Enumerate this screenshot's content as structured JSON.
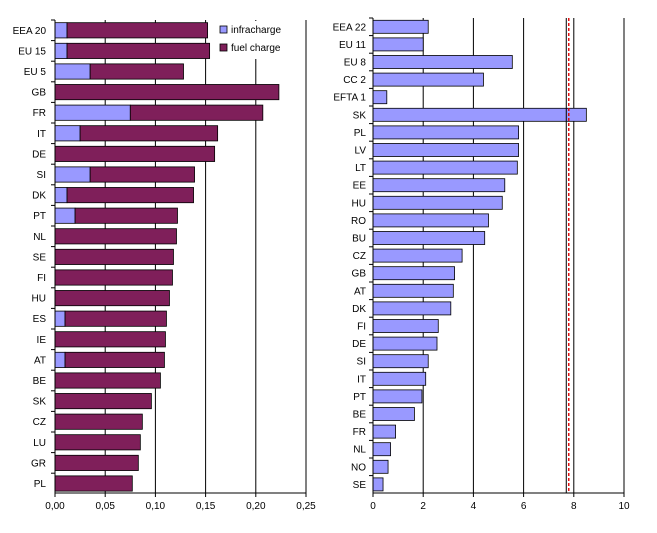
{
  "chart_data": [
    {
      "type": "bar",
      "orientation": "horizontal",
      "stacked": true,
      "categories": [
        "EEA 20",
        "EU 15",
        "EU 5",
        "GB",
        "FR",
        "IT",
        "DE",
        "SI",
        "DK",
        "PT",
        "NL",
        "SE",
        "FI",
        "HU",
        "ES",
        "IE",
        "AT",
        "BE",
        "SK",
        "CZ",
        "LU",
        "GR",
        "PL"
      ],
      "series": [
        {
          "name": "infracharge",
          "color": "#9999ff",
          "values": [
            0.012,
            0.012,
            0.035,
            0,
            0.075,
            0.025,
            0,
            0.035,
            0.012,
            0.02,
            0,
            0,
            0,
            0,
            0.01,
            0,
            0.01,
            0,
            0,
            0,
            0,
            0,
            0
          ]
        },
        {
          "name": "fuel charge",
          "color": "#7f1f5a",
          "values": [
            0.14,
            0.142,
            0.093,
            0.223,
            0.132,
            0.137,
            0.159,
            0.104,
            0.126,
            0.102,
            0.121,
            0.118,
            0.117,
            0.114,
            0.101,
            0.11,
            0.099,
            0.105,
            0.096,
            0.087,
            0.085,
            0.083,
            0.077
          ]
        }
      ],
      "xlim": [
        0,
        0.25
      ],
      "xticks": [
        "0,00",
        "0,05",
        "0,10",
        "0,15",
        "0,20",
        "0,25"
      ],
      "legend": "top-right",
      "grid": "vertical"
    },
    {
      "type": "bar",
      "orientation": "horizontal",
      "categories": [
        "EEA 22",
        "EU 11",
        "EU 8",
        "CC 2",
        "EFTA 1",
        "SK",
        "PL",
        "LV",
        "LT",
        "EE",
        "HU",
        "RO",
        "BU",
        "CZ",
        "GB",
        "AT",
        "DK",
        "FI",
        "DE",
        "SI",
        "IT",
        "PT",
        "BE",
        "FR",
        "NL",
        "NO",
        "SE"
      ],
      "series": [
        {
          "color": "#9999ff",
          "values": [
            2.2,
            2.0,
            5.55,
            4.4,
            0.55,
            8.5,
            5.8,
            5.8,
            5.75,
            5.25,
            5.15,
            4.6,
            4.45,
            3.55,
            3.25,
            3.2,
            3.1,
            2.6,
            2.55,
            2.2,
            2.1,
            1.95,
            1.65,
            0.9,
            0.7,
            0.6,
            0.4
          ]
        }
      ],
      "xlim": [
        0,
        10
      ],
      "xticks": [
        "0",
        "2",
        "4",
        "6",
        "8",
        "10"
      ],
      "reference_line": {
        "value": 7.7,
        "color": "#e00000",
        "style": "dashed"
      },
      "grid": "vertical"
    }
  ]
}
